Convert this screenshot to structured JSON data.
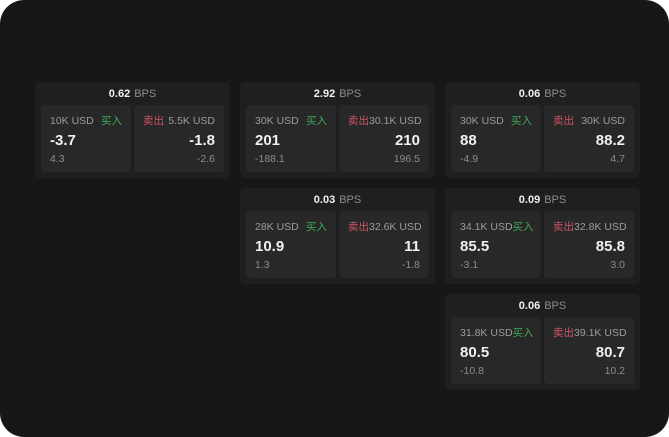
{
  "colors": {
    "app_bg": "#171717",
    "card_bg": "#1f1f1f",
    "panel_bg": "#282828",
    "buy_color": "#3faa58",
    "sell_color": "#cf5466",
    "label_color": "#9c9c9c",
    "value_color": "#f0f0f0",
    "muted_color": "#8c8c8c"
  },
  "labels": {
    "bps_unit": "BPS",
    "buy": "买入",
    "sell": "卖出"
  },
  "cards": [
    {
      "grid": {
        "row": 1,
        "col": 1
      },
      "bps": "0.62",
      "buy": {
        "amount": "10K USD",
        "price": "-3.7",
        "delta": "4.3"
      },
      "sell": {
        "amount": "5.5K USD",
        "price": "-1.8",
        "delta": "-2.6"
      }
    },
    {
      "grid": {
        "row": 1,
        "col": 2
      },
      "bps": "2.92",
      "buy": {
        "amount": "30K USD",
        "price": "201",
        "delta": "-188.1"
      },
      "sell": {
        "amount": "30.1K USD",
        "price": "210",
        "delta": "196.5"
      }
    },
    {
      "grid": {
        "row": 1,
        "col": 3
      },
      "bps": "0.06",
      "buy": {
        "amount": "30K USD",
        "price": "88",
        "delta": "-4.9"
      },
      "sell": {
        "amount": "30K USD",
        "price": "88.2",
        "delta": "4.7"
      }
    },
    {
      "grid": {
        "row": 2,
        "col": 2
      },
      "bps": "0.03",
      "buy": {
        "amount": "28K USD",
        "price": "10.9",
        "delta": "1.3"
      },
      "sell": {
        "amount": "32.6K USD",
        "price": "11",
        "delta": "-1.8"
      }
    },
    {
      "grid": {
        "row": 2,
        "col": 3
      },
      "bps": "0.09",
      "buy": {
        "amount": "34.1K USD",
        "price": "85.5",
        "delta": "-3.1"
      },
      "sell": {
        "amount": "32.8K USD",
        "price": "85.8",
        "delta": "3.0"
      }
    },
    {
      "grid": {
        "row": 3,
        "col": 3
      },
      "bps": "0.06",
      "buy": {
        "amount": "31.8K USD",
        "price": "80.5",
        "delta": "-10.8"
      },
      "sell": {
        "amount": "39.1K USD",
        "price": "80.7",
        "delta": "10.2"
      }
    }
  ]
}
